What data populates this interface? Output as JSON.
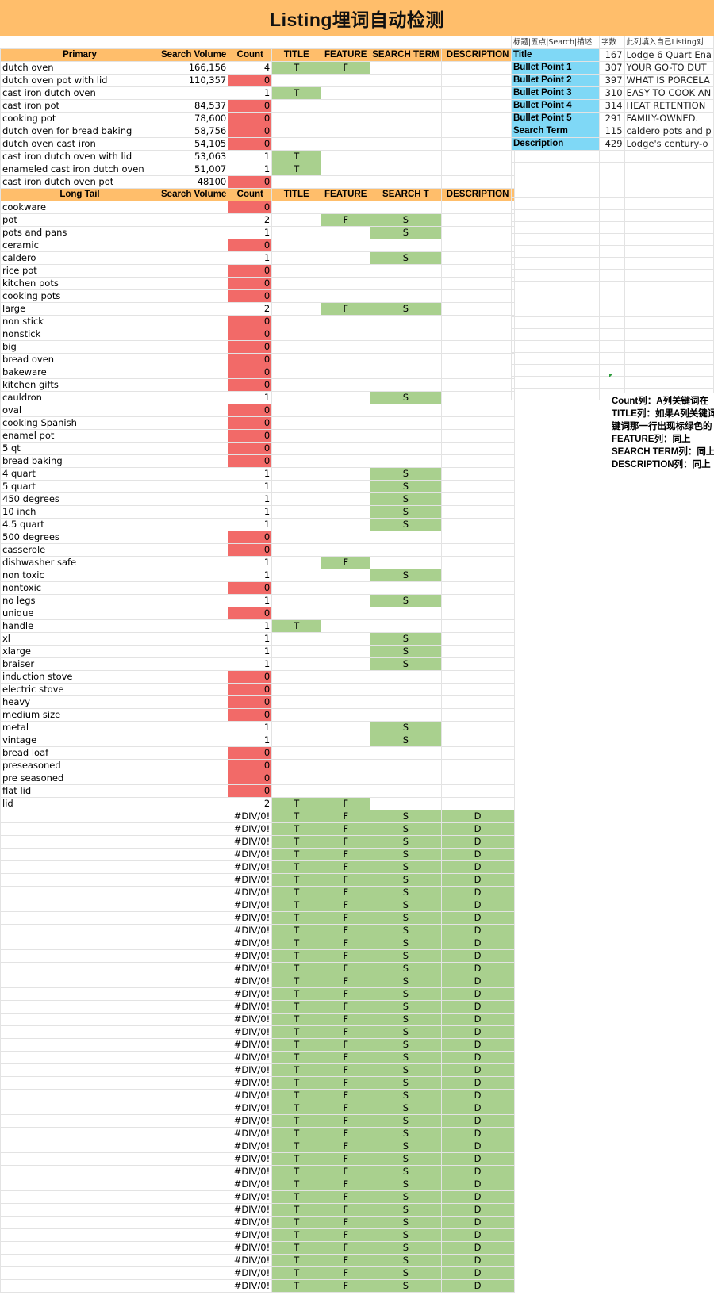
{
  "sheet_title": "Listing埋词自动检测",
  "primary_headers": [
    "Primary",
    "Search Volume",
    "Count",
    "TITLE",
    "FEATURE",
    "SEARCH TERM",
    "DESCRIPTION"
  ],
  "primary_rows": [
    {
      "kw": "dutch oven",
      "vol": "166,156",
      "count": "4",
      "t": "T",
      "f": "F",
      "s": "",
      "d": ""
    },
    {
      "kw": "dutch oven pot with lid",
      "vol": "110,357",
      "count": "0",
      "t": "",
      "f": "",
      "s": "",
      "d": ""
    },
    {
      "kw": "cast iron dutch oven",
      "vol": "",
      "count": "1",
      "t": "T",
      "f": "",
      "s": "",
      "d": ""
    },
    {
      "kw": "cast iron pot",
      "vol": "84,537",
      "count": "0",
      "t": "",
      "f": "",
      "s": "",
      "d": ""
    },
    {
      "kw": "cooking pot",
      "vol": "78,600",
      "count": "0",
      "t": "",
      "f": "",
      "s": "",
      "d": ""
    },
    {
      "kw": "dutch oven for bread baking",
      "vol": "58,756",
      "count": "0",
      "t": "",
      "f": "",
      "s": "",
      "d": ""
    },
    {
      "kw": "dutch oven cast iron",
      "vol": "54,105",
      "count": "0",
      "t": "",
      "f": "",
      "s": "",
      "d": ""
    },
    {
      "kw": "cast iron dutch oven with lid",
      "vol": "53,063",
      "count": "1",
      "t": "T",
      "f": "",
      "s": "",
      "d": ""
    },
    {
      "kw": "enameled cast iron dutch oven",
      "vol": "51,007",
      "count": "1",
      "t": "T",
      "f": "",
      "s": "",
      "d": ""
    },
    {
      "kw": "cast iron dutch oven pot",
      "vol": "48100",
      "count": "0",
      "t": "",
      "f": "",
      "s": "",
      "d": ""
    }
  ],
  "longtail_headers": [
    "Long Tail",
    "Search Volume",
    "Count",
    "TITLE",
    "FEATURE",
    "SEARCH T",
    "DESCRIPTION"
  ],
  "longtail_rows": [
    {
      "kw": "cookware",
      "count": "0",
      "t": "",
      "f": "",
      "s": "",
      "d": ""
    },
    {
      "kw": "pot",
      "count": "2",
      "t": "",
      "f": "F",
      "s": "S",
      "d": ""
    },
    {
      "kw": "pots and pans",
      "count": "1",
      "t": "",
      "f": "",
      "s": "S",
      "d": ""
    },
    {
      "kw": "ceramic",
      "count": "0",
      "t": "",
      "f": "",
      "s": "",
      "d": ""
    },
    {
      "kw": "caldero",
      "count": "1",
      "t": "",
      "f": "",
      "s": "S",
      "d": ""
    },
    {
      "kw": "rice pot",
      "count": "0",
      "t": "",
      "f": "",
      "s": "",
      "d": ""
    },
    {
      "kw": "kitchen pots",
      "count": "0",
      "t": "",
      "f": "",
      "s": "",
      "d": ""
    },
    {
      "kw": "cooking pots",
      "count": "0",
      "t": "",
      "f": "",
      "s": "",
      "d": ""
    },
    {
      "kw": "large",
      "count": "2",
      "t": "",
      "f": "F",
      "s": "S",
      "d": ""
    },
    {
      "kw": "non stick",
      "count": "0",
      "t": "",
      "f": "",
      "s": "",
      "d": ""
    },
    {
      "kw": "nonstick",
      "count": "0",
      "t": "",
      "f": "",
      "s": "",
      "d": ""
    },
    {
      "kw": "big",
      "count": "0",
      "t": "",
      "f": "",
      "s": "",
      "d": ""
    },
    {
      "kw": "bread oven",
      "count": "0",
      "t": "",
      "f": "",
      "s": "",
      "d": ""
    },
    {
      "kw": "bakeware",
      "count": "0",
      "t": "",
      "f": "",
      "s": "",
      "d": ""
    },
    {
      "kw": "kitchen gifts",
      "count": "0",
      "t": "",
      "f": "",
      "s": "",
      "d": ""
    },
    {
      "kw": "cauldron",
      "count": "1",
      "t": "",
      "f": "",
      "s": "S",
      "d": ""
    },
    {
      "kw": "oval",
      "count": "0",
      "t": "",
      "f": "",
      "s": "",
      "d": ""
    },
    {
      "kw": "cooking Spanish",
      "count": "0",
      "t": "",
      "f": "",
      "s": "",
      "d": ""
    },
    {
      "kw": "enamel pot",
      "count": "0",
      "t": "",
      "f": "",
      "s": "",
      "d": ""
    },
    {
      "kw": "5 qt",
      "count": "0",
      "t": "",
      "f": "",
      "s": "",
      "d": ""
    },
    {
      "kw": "bread baking",
      "count": "0",
      "t": "",
      "f": "",
      "s": "",
      "d": ""
    },
    {
      "kw": "4 quart",
      "count": "1",
      "t": "",
      "f": "",
      "s": "S",
      "d": ""
    },
    {
      "kw": "5 quart",
      "count": "1",
      "t": "",
      "f": "",
      "s": "S",
      "d": ""
    },
    {
      "kw": "450 degrees",
      "count": "1",
      "t": "",
      "f": "",
      "s": "S",
      "d": ""
    },
    {
      "kw": "10 inch",
      "count": "1",
      "t": "",
      "f": "",
      "s": "S",
      "d": ""
    },
    {
      "kw": "4.5 quart",
      "count": "1",
      "t": "",
      "f": "",
      "s": "S",
      "d": ""
    },
    {
      "kw": "500 degrees",
      "count": "0",
      "t": "",
      "f": "",
      "s": "",
      "d": ""
    },
    {
      "kw": "casserole",
      "count": "0",
      "t": "",
      "f": "",
      "s": "",
      "d": ""
    },
    {
      "kw": "dishwasher safe",
      "count": "1",
      "t": "",
      "f": "F",
      "s": "",
      "d": ""
    },
    {
      "kw": "non toxic",
      "count": "1",
      "t": "",
      "f": "",
      "s": "S",
      "d": ""
    },
    {
      "kw": "nontoxic",
      "count": "0",
      "t": "",
      "f": "",
      "s": "",
      "d": ""
    },
    {
      "kw": "no legs",
      "count": "1",
      "t": "",
      "f": "",
      "s": "S",
      "d": ""
    },
    {
      "kw": "unique",
      "count": "0",
      "t": "",
      "f": "",
      "s": "",
      "d": ""
    },
    {
      "kw": "handle",
      "count": "1",
      "t": "T",
      "f": "",
      "s": "",
      "d": ""
    },
    {
      "kw": "xl",
      "count": "1",
      "t": "",
      "f": "",
      "s": "S",
      "d": ""
    },
    {
      "kw": "xlarge",
      "count": "1",
      "t": "",
      "f": "",
      "s": "S",
      "d": ""
    },
    {
      "kw": "braiser",
      "count": "1",
      "t": "",
      "f": "",
      "s": "S",
      "d": ""
    },
    {
      "kw": "induction stove",
      "count": "0",
      "t": "",
      "f": "",
      "s": "",
      "d": ""
    },
    {
      "kw": "electric stove",
      "count": "0",
      "t": "",
      "f": "",
      "s": "",
      "d": ""
    },
    {
      "kw": "heavy",
      "count": "0",
      "t": "",
      "f": "",
      "s": "",
      "d": ""
    },
    {
      "kw": "medium size",
      "count": "0",
      "t": "",
      "f": "",
      "s": "",
      "d": ""
    },
    {
      "kw": "metal",
      "count": "1",
      "t": "",
      "f": "",
      "s": "S",
      "d": ""
    },
    {
      "kw": "vintage",
      "count": "1",
      "t": "",
      "f": "",
      "s": "S",
      "d": ""
    },
    {
      "kw": "bread loaf",
      "count": "0",
      "t": "",
      "f": "",
      "s": "",
      "d": ""
    },
    {
      "kw": "preseasoned",
      "count": "0",
      "t": "",
      "f": "",
      "s": "",
      "d": ""
    },
    {
      "kw": "pre seasoned",
      "count": "0",
      "t": "",
      "f": "",
      "s": "",
      "d": ""
    },
    {
      "kw": "flat lid",
      "count": "0",
      "t": "",
      "f": "",
      "s": "",
      "d": ""
    },
    {
      "kw": "lid",
      "count": "2",
      "t": "T",
      "f": "F",
      "s": "",
      "d": ""
    }
  ],
  "empty_rows": {
    "count": 38,
    "count_value": "#DIV/0!",
    "t": "T",
    "f": "F",
    "s": "S",
    "d": "D"
  },
  "listing_headers": [
    "标题|五点|Search|描述",
    "字数",
    "此列填入自己Listing对"
  ],
  "listing_rows": [
    {
      "label": "Title",
      "chars": "167",
      "text": "Lodge 6 Quart Ena"
    },
    {
      "label": "Bullet Point 1",
      "chars": "307",
      "text": "YOUR GO-TO DUT"
    },
    {
      "label": "Bullet Point 2",
      "chars": "397",
      "text": "WHAT IS PORCELA"
    },
    {
      "label": "Bullet Point 3",
      "chars": "310",
      "text": "EASY TO COOK AN"
    },
    {
      "label": "Bullet Point 4",
      "chars": "314",
      "text": "HEAT RETENTION"
    },
    {
      "label": "Bullet Point 5",
      "chars": "291",
      "text": "FAMILY-OWNED."
    },
    {
      "label": "Search Term",
      "chars": "115",
      "text": "caldero pots and p"
    },
    {
      "label": "Description",
      "chars": "429",
      "text": "Lodge's century-o"
    }
  ],
  "note_lines": [
    "Count列：A列关键词在",
    "TITLE列：如果A列关键词",
    "键词那一行出现标绿色的",
    "FEATURE列：同上",
    "SEARCH TERM列：同上",
    "DESCRIPTION列：同上"
  ],
  "colors": {
    "header_orange": "#ffbe6b",
    "zero_red": "#f26a68",
    "match_green": "#a9d08e",
    "listing_cyan": "#7fd8f6"
  }
}
